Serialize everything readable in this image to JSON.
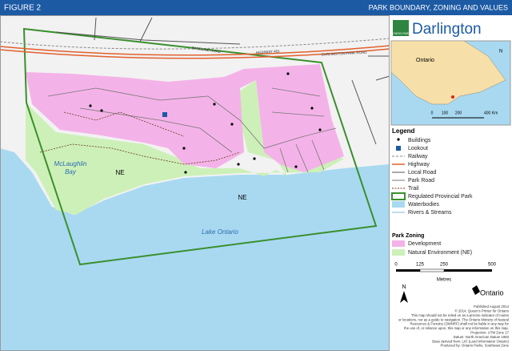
{
  "header": {
    "figure": "FIGURE 2",
    "title": "PARK BOUNDARY, ZONING AND VALUES"
  },
  "map": {
    "roads": [
      "BASELINE ROAD",
      "HIGHWAY 401",
      "DARLINGTON PARK ROAD"
    ],
    "bay": [
      "McLaughlin",
      "Bay"
    ],
    "lake": "Lake Ontario",
    "zones": [
      "NE",
      "NE"
    ]
  },
  "sidebar": {
    "logo": "ONTARIO PARKS",
    "park": "Darlington",
    "inset": {
      "label": "Ontario",
      "north": "N",
      "scale": [
        "0",
        "100",
        "200",
        "400 Km"
      ]
    }
  },
  "legend": {
    "title": "Legend",
    "items": [
      "Buildings",
      "Lookout",
      "Railway",
      "Highway",
      "Local Road",
      "Park Road",
      "Trail",
      "Regulated Provincial Park",
      "Waterbodies",
      "Rivers & Streams"
    ],
    "zoning_title": "Park Zoning",
    "zoning": [
      "Development",
      "Natural Environment (NE)"
    ],
    "scale": [
      "0",
      "125",
      "250",
      "500"
    ],
    "scale_unit": "Metres",
    "north": "N",
    "ministry": "Ontario"
  },
  "footer": {
    "lines": [
      "Published August 2014",
      "© 2014, Queen's Printer for Ontario",
      "This map should not be relied on as a precise indicator of routes",
      "or locations, nor as a guide to navigation. The Ontario Ministry of Natural",
      "Resources & Forestry (OMNRF) shall not be liable in any way for",
      "the use of, or reliance upon, this map or any information on this map.",
      "Projection: UTM Zone 17",
      "Datum: North American Datum 1983",
      "Base derived from: LIO (Land Information Ontario)",
      "Produced by: Ontario Parks, Southeast Zone"
    ]
  }
}
